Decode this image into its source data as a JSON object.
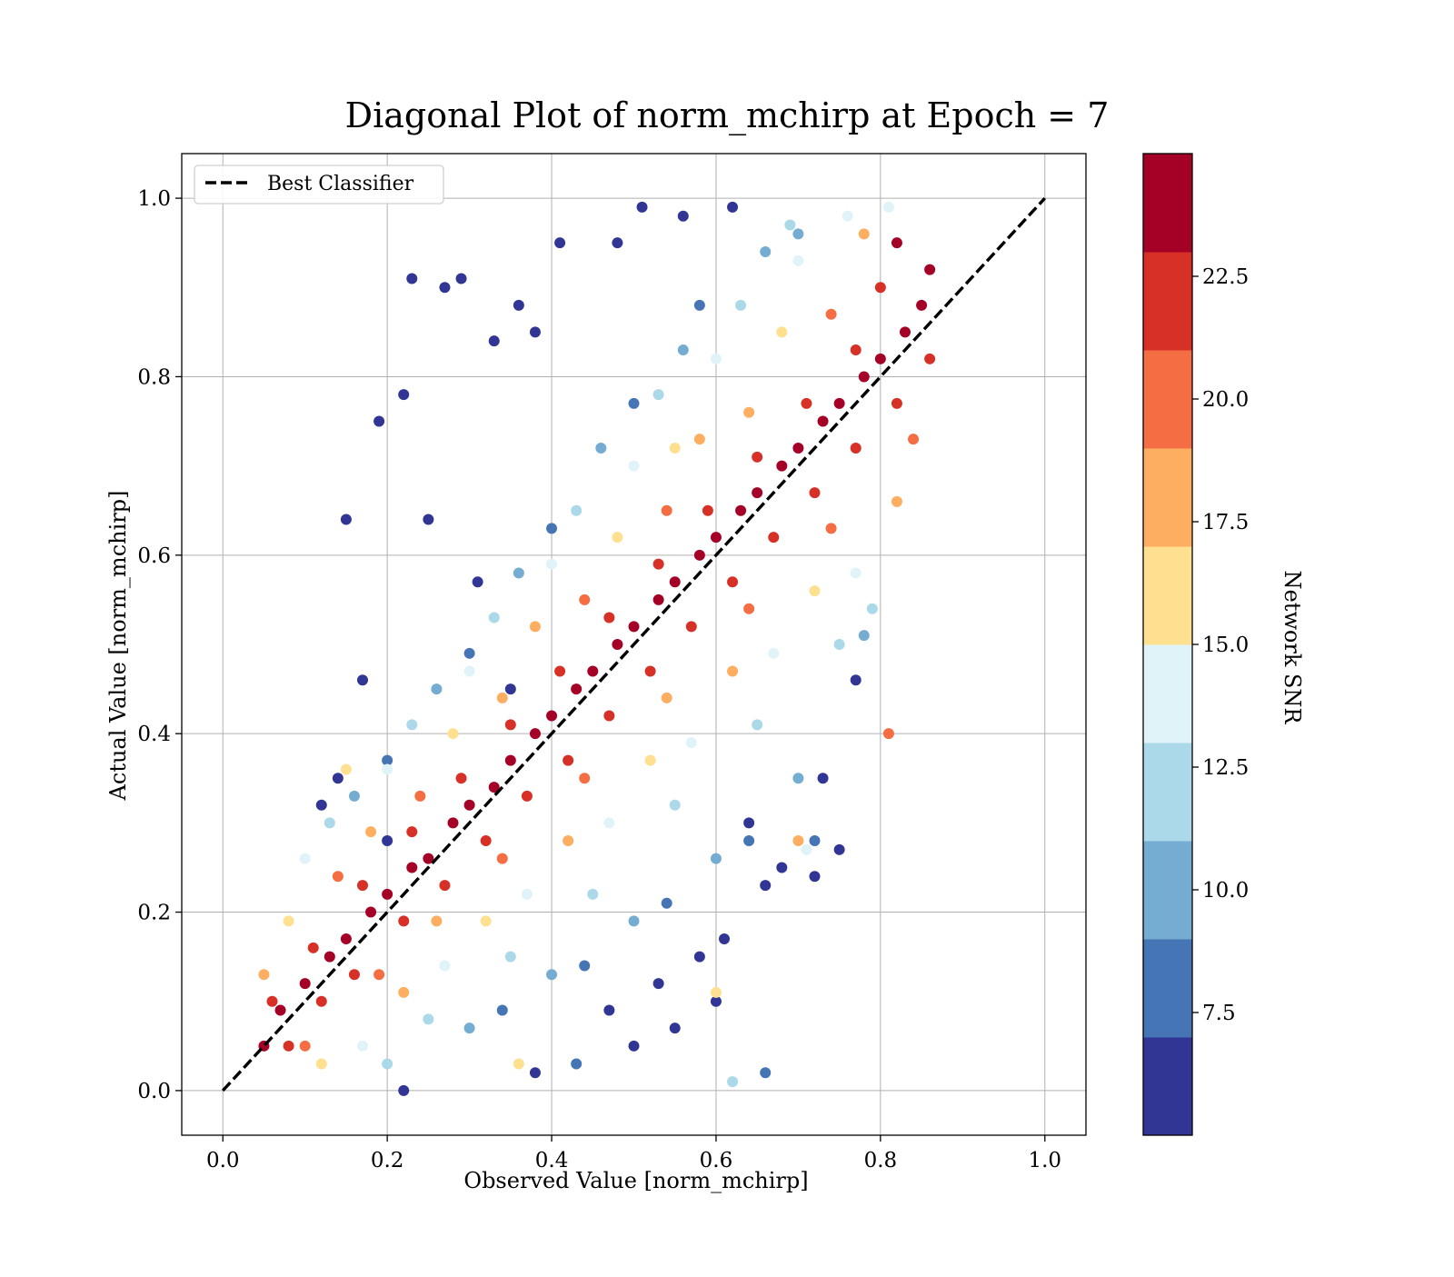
{
  "chart_data": {
    "type": "scatter",
    "title": "Diagonal Plot of norm_mchirp at Epoch = 7",
    "xlabel": "Observed Value [norm_mchirp]",
    "ylabel": "Actual Value [norm_mchirp]",
    "xlim": [
      -0.05,
      1.05
    ],
    "ylim": [
      -0.05,
      1.05
    ],
    "xticks": [
      0.0,
      0.2,
      0.4,
      0.6,
      0.8,
      1.0
    ],
    "yticks": [
      0.0,
      0.2,
      0.4,
      0.6,
      0.8,
      1.0
    ],
    "xtick_labels": [
      "0.0",
      "0.2",
      "0.4",
      "0.6",
      "0.8",
      "1.0"
    ],
    "ytick_labels": [
      "0.0",
      "0.2",
      "0.4",
      "0.6",
      "0.8",
      "1.0"
    ],
    "grid": true,
    "legend": {
      "placement": "upper-left",
      "entries": [
        {
          "label": "Best Classifier",
          "style": "dashed",
          "color": "#000000"
        }
      ]
    },
    "reference_line": {
      "name": "Best Classifier",
      "x": [
        0.0,
        1.0
      ],
      "y": [
        0.0,
        1.0
      ]
    },
    "colorbar": {
      "label": "Network SNR",
      "vmin": 5.0,
      "vmax": 25.0,
      "ticks": [
        7.5,
        10.0,
        12.5,
        15.0,
        17.5,
        20.0,
        22.5
      ],
      "tick_labels": [
        "7.5",
        "10.0",
        "12.5",
        "15.0",
        "17.5",
        "20.0",
        "22.5"
      ],
      "colors": [
        "#313695",
        "#4575b4",
        "#74add1",
        "#abd9e9",
        "#e0f3f8",
        "#fee090",
        "#fdae61",
        "#f46d43",
        "#d73027",
        "#a50026"
      ]
    },
    "series": [
      {
        "value_description": "cloud of points around the diagonal, spread widens as SNR decreases; mostly within x 0.04–0.88, y 0.0–1.0",
        "points": [
          [
            0.05,
            0.05,
            24.0
          ],
          [
            0.07,
            0.09,
            23.5
          ],
          [
            0.1,
            0.12,
            24.0
          ],
          [
            0.13,
            0.15,
            23.0
          ],
          [
            0.15,
            0.17,
            24.5
          ],
          [
            0.18,
            0.2,
            23.0
          ],
          [
            0.2,
            0.22,
            24.0
          ],
          [
            0.23,
            0.25,
            23.5
          ],
          [
            0.25,
            0.26,
            24.0
          ],
          [
            0.28,
            0.3,
            23.0
          ],
          [
            0.3,
            0.32,
            24.5
          ],
          [
            0.33,
            0.34,
            23.5
          ],
          [
            0.35,
            0.37,
            24.0
          ],
          [
            0.38,
            0.4,
            23.0
          ],
          [
            0.4,
            0.42,
            24.5
          ],
          [
            0.43,
            0.45,
            23.5
          ],
          [
            0.45,
            0.47,
            24.0
          ],
          [
            0.48,
            0.5,
            23.0
          ],
          [
            0.5,
            0.52,
            24.5
          ],
          [
            0.53,
            0.55,
            23.5
          ],
          [
            0.55,
            0.57,
            24.0
          ],
          [
            0.58,
            0.6,
            23.0
          ],
          [
            0.6,
            0.62,
            24.5
          ],
          [
            0.63,
            0.65,
            23.5
          ],
          [
            0.65,
            0.67,
            24.0
          ],
          [
            0.68,
            0.7,
            23.0
          ],
          [
            0.7,
            0.72,
            24.5
          ],
          [
            0.73,
            0.75,
            23.5
          ],
          [
            0.75,
            0.77,
            24.0
          ],
          [
            0.78,
            0.8,
            23.0
          ],
          [
            0.8,
            0.82,
            24.5
          ],
          [
            0.83,
            0.85,
            23.5
          ],
          [
            0.85,
            0.88,
            24.0
          ],
          [
            0.86,
            0.92,
            23.0
          ],
          [
            0.82,
            0.95,
            24.0
          ],
          [
            0.08,
            0.05,
            21.5
          ],
          [
            0.12,
            0.1,
            21.0
          ],
          [
            0.16,
            0.13,
            22.0
          ],
          [
            0.22,
            0.19,
            21.0
          ],
          [
            0.27,
            0.23,
            22.5
          ],
          [
            0.32,
            0.28,
            21.0
          ],
          [
            0.37,
            0.33,
            22.0
          ],
          [
            0.42,
            0.37,
            21.5
          ],
          [
            0.47,
            0.42,
            22.0
          ],
          [
            0.52,
            0.47,
            21.0
          ],
          [
            0.57,
            0.52,
            22.5
          ],
          [
            0.62,
            0.57,
            21.0
          ],
          [
            0.67,
            0.62,
            22.0
          ],
          [
            0.72,
            0.67,
            21.5
          ],
          [
            0.77,
            0.72,
            22.0
          ],
          [
            0.82,
            0.77,
            21.0
          ],
          [
            0.86,
            0.82,
            22.5
          ],
          [
            0.06,
            0.1,
            21.0
          ],
          [
            0.11,
            0.16,
            22.0
          ],
          [
            0.17,
            0.23,
            21.5
          ],
          [
            0.23,
            0.29,
            21.0
          ],
          [
            0.29,
            0.35,
            22.0
          ],
          [
            0.35,
            0.41,
            21.5
          ],
          [
            0.41,
            0.47,
            22.0
          ],
          [
            0.47,
            0.53,
            21.0
          ],
          [
            0.53,
            0.59,
            22.5
          ],
          [
            0.59,
            0.65,
            21.0
          ],
          [
            0.65,
            0.71,
            22.0
          ],
          [
            0.71,
            0.77,
            21.5
          ],
          [
            0.77,
            0.83,
            22.0
          ],
          [
            0.8,
            0.9,
            21.0
          ],
          [
            0.1,
            0.05,
            19.0
          ],
          [
            0.19,
            0.13,
            19.5
          ],
          [
            0.26,
            0.19,
            18.5
          ],
          [
            0.34,
            0.26,
            19.0
          ],
          [
            0.44,
            0.35,
            19.5
          ],
          [
            0.54,
            0.44,
            18.5
          ],
          [
            0.64,
            0.54,
            19.0
          ],
          [
            0.74,
            0.63,
            19.5
          ],
          [
            0.84,
            0.73,
            19.0
          ],
          [
            0.05,
            0.13,
            18.5
          ],
          [
            0.14,
            0.24,
            19.0
          ],
          [
            0.24,
            0.33,
            19.5
          ],
          [
            0.34,
            0.44,
            18.5
          ],
          [
            0.44,
            0.55,
            19.0
          ],
          [
            0.54,
            0.65,
            19.5
          ],
          [
            0.64,
            0.76,
            18.5
          ],
          [
            0.74,
            0.87,
            19.0
          ],
          [
            0.81,
            0.4,
            20.0
          ],
          [
            0.7,
            0.28,
            18.5
          ],
          [
            0.12,
            0.03,
            16.5
          ],
          [
            0.22,
            0.11,
            17.0
          ],
          [
            0.32,
            0.19,
            16.5
          ],
          [
            0.42,
            0.28,
            17.0
          ],
          [
            0.52,
            0.37,
            16.5
          ],
          [
            0.62,
            0.47,
            17.0
          ],
          [
            0.72,
            0.56,
            16.5
          ],
          [
            0.82,
            0.66,
            17.0
          ],
          [
            0.08,
            0.19,
            16.5
          ],
          [
            0.18,
            0.29,
            17.0
          ],
          [
            0.28,
            0.4,
            16.5
          ],
          [
            0.38,
            0.52,
            17.0
          ],
          [
            0.48,
            0.62,
            16.5
          ],
          [
            0.58,
            0.73,
            17.0
          ],
          [
            0.68,
            0.85,
            16.5
          ],
          [
            0.78,
            0.96,
            17.0
          ],
          [
            0.36,
            0.03,
            16.0
          ],
          [
            0.6,
            0.11,
            16.0
          ],
          [
            0.55,
            0.72,
            15.5
          ],
          [
            0.15,
            0.36,
            16.0
          ],
          [
            0.17,
            0.05,
            14.0
          ],
          [
            0.27,
            0.14,
            13.5
          ],
          [
            0.37,
            0.22,
            14.0
          ],
          [
            0.47,
            0.3,
            13.5
          ],
          [
            0.57,
            0.39,
            14.0
          ],
          [
            0.67,
            0.49,
            13.5
          ],
          [
            0.77,
            0.58,
            14.0
          ],
          [
            0.1,
            0.26,
            14.0
          ],
          [
            0.2,
            0.36,
            13.5
          ],
          [
            0.3,
            0.47,
            14.0
          ],
          [
            0.4,
            0.59,
            13.5
          ],
          [
            0.5,
            0.7,
            14.0
          ],
          [
            0.6,
            0.82,
            13.5
          ],
          [
            0.7,
            0.93,
            14.0
          ],
          [
            0.76,
            0.98,
            13.5
          ],
          [
            0.71,
            0.27,
            14.0
          ],
          [
            0.81,
            0.99,
            14.5
          ],
          [
            0.25,
            0.08,
            11.5
          ],
          [
            0.35,
            0.15,
            12.0
          ],
          [
            0.45,
            0.22,
            11.5
          ],
          [
            0.55,
            0.32,
            12.0
          ],
          [
            0.65,
            0.41,
            11.5
          ],
          [
            0.75,
            0.5,
            12.0
          ],
          [
            0.79,
            0.54,
            11.5
          ],
          [
            0.13,
            0.3,
            12.0
          ],
          [
            0.23,
            0.41,
            11.5
          ],
          [
            0.33,
            0.53,
            12.0
          ],
          [
            0.43,
            0.65,
            11.5
          ],
          [
            0.53,
            0.78,
            12.0
          ],
          [
            0.63,
            0.88,
            11.5
          ],
          [
            0.69,
            0.97,
            12.0
          ],
          [
            0.62,
            0.01,
            11.0
          ],
          [
            0.2,
            0.03,
            11.5
          ],
          [
            0.3,
            0.07,
            9.5
          ],
          [
            0.4,
            0.13,
            10.0
          ],
          [
            0.5,
            0.19,
            9.5
          ],
          [
            0.6,
            0.26,
            10.0
          ],
          [
            0.7,
            0.35,
            9.5
          ],
          [
            0.78,
            0.51,
            10.0
          ],
          [
            0.16,
            0.33,
            9.5
          ],
          [
            0.26,
            0.45,
            10.0
          ],
          [
            0.36,
            0.58,
            9.5
          ],
          [
            0.46,
            0.72,
            10.0
          ],
          [
            0.56,
            0.83,
            9.5
          ],
          [
            0.66,
            0.94,
            10.0
          ],
          [
            0.7,
            0.96,
            10.5
          ],
          [
            0.34,
            0.09,
            7.5
          ],
          [
            0.44,
            0.14,
            8.0
          ],
          [
            0.54,
            0.21,
            7.5
          ],
          [
            0.64,
            0.28,
            8.0
          ],
          [
            0.72,
            0.28,
            7.5
          ],
          [
            0.2,
            0.37,
            8.0
          ],
          [
            0.3,
            0.49,
            7.5
          ],
          [
            0.4,
            0.63,
            8.0
          ],
          [
            0.5,
            0.77,
            7.5
          ],
          [
            0.58,
            0.88,
            8.0
          ],
          [
            0.43,
            0.03,
            8.0
          ],
          [
            0.66,
            0.02,
            7.5
          ],
          [
            0.15,
            0.64,
            6.0
          ],
          [
            0.23,
            0.91,
            5.5
          ],
          [
            0.29,
            0.91,
            6.0
          ],
          [
            0.19,
            0.75,
            5.5
          ],
          [
            0.17,
            0.46,
            6.0
          ],
          [
            0.22,
            0.78,
            5.5
          ],
          [
            0.27,
            0.9,
            6.0
          ],
          [
            0.41,
            0.95,
            5.5
          ],
          [
            0.48,
            0.95,
            6.0
          ],
          [
            0.51,
            0.99,
            5.5
          ],
          [
            0.56,
            0.98,
            6.0
          ],
          [
            0.62,
            0.99,
            5.5
          ],
          [
            0.36,
            0.88,
            6.0
          ],
          [
            0.38,
            0.85,
            5.5
          ],
          [
            0.33,
            0.84,
            6.0
          ],
          [
            0.25,
            0.64,
            5.5
          ],
          [
            0.31,
            0.57,
            6.0
          ],
          [
            0.35,
            0.45,
            5.5
          ],
          [
            0.2,
            0.28,
            6.0
          ],
          [
            0.14,
            0.35,
            5.5
          ],
          [
            0.12,
            0.32,
            6.0
          ],
          [
            0.22,
            0.0,
            5.5
          ],
          [
            0.38,
            0.02,
            6.0
          ],
          [
            0.5,
            0.05,
            5.5
          ],
          [
            0.55,
            0.07,
            6.0
          ],
          [
            0.6,
            0.1,
            5.5
          ],
          [
            0.61,
            0.17,
            6.0
          ],
          [
            0.68,
            0.25,
            5.5
          ],
          [
            0.72,
            0.24,
            6.0
          ],
          [
            0.75,
            0.27,
            5.5
          ],
          [
            0.73,
            0.35,
            6.0
          ],
          [
            0.77,
            0.46,
            5.5
          ],
          [
            0.66,
            0.23,
            6.0
          ],
          [
            0.64,
            0.3,
            5.5
          ],
          [
            0.58,
            0.15,
            6.0
          ],
          [
            0.53,
            0.12,
            5.5
          ],
          [
            0.47,
            0.09,
            6.0
          ]
        ]
      }
    ]
  }
}
